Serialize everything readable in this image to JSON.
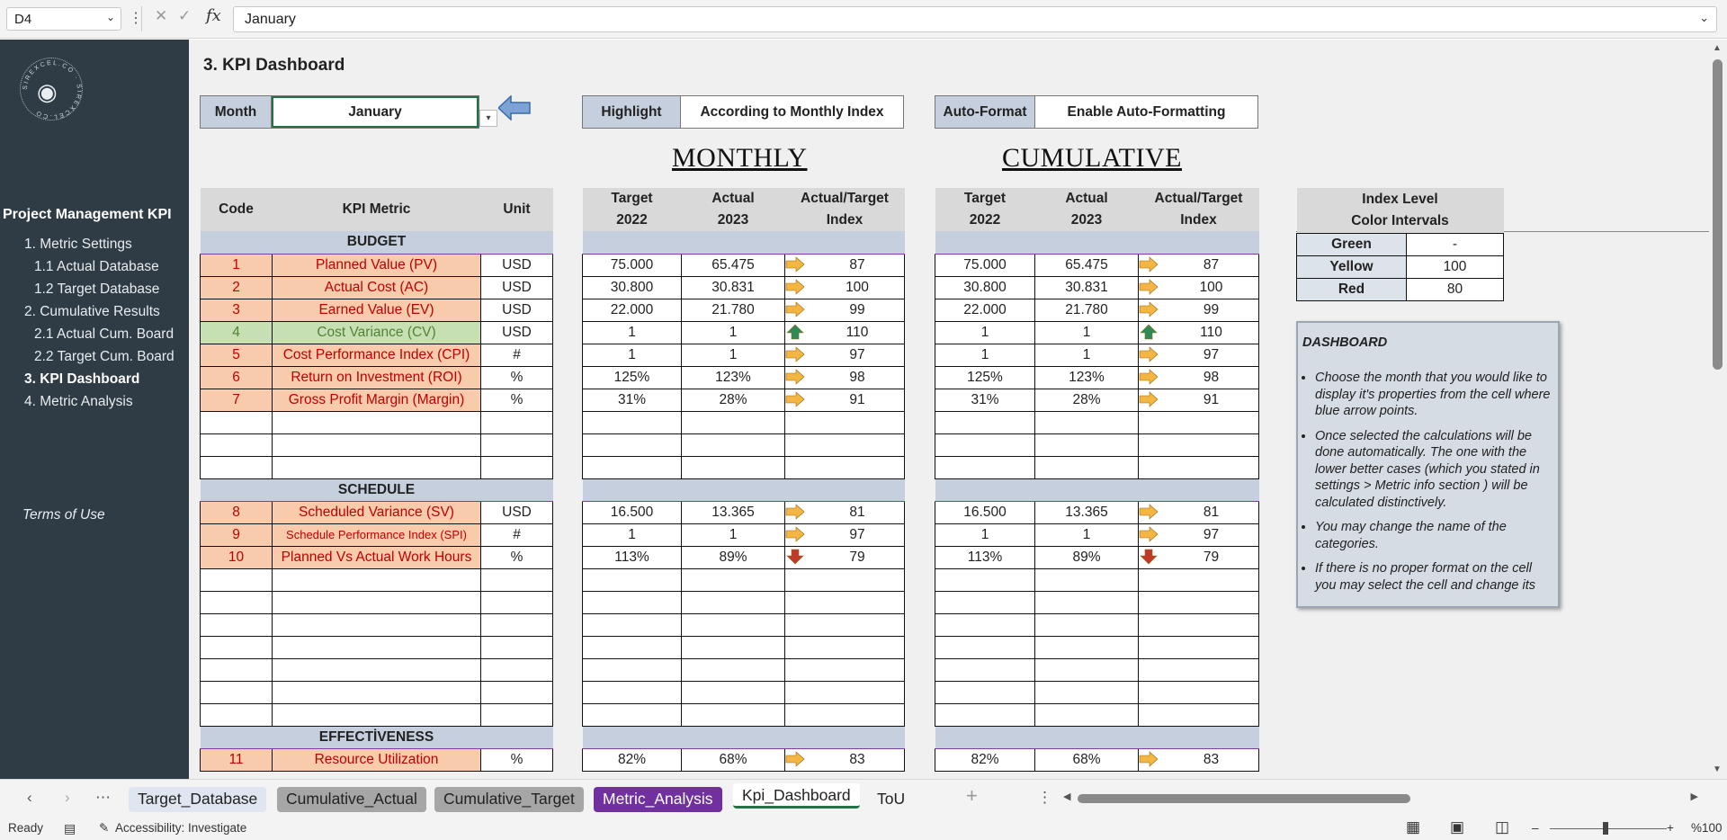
{
  "formula_bar": {
    "name_box": "D4",
    "formula": "January"
  },
  "sidebar": {
    "logo_text": "SIREXCEL.CO",
    "title": "Project Management KPI",
    "items": [
      {
        "label": "1. Metric Settings",
        "level": 1,
        "active": false
      },
      {
        "label": "1.1 Actual Database",
        "level": 2,
        "active": false
      },
      {
        "label": "1.2 Target Database",
        "level": 2,
        "active": false
      },
      {
        "label": "2. Cumulative Results",
        "level": 1,
        "active": false
      },
      {
        "label": "2.1 Actual Cum. Board",
        "level": 2,
        "active": false
      },
      {
        "label": "2.2 Target Cum. Board",
        "level": 2,
        "active": false
      },
      {
        "label": "3. KPI Dashboard",
        "level": 1,
        "active": true
      },
      {
        "label": "4. Metric Analysis",
        "level": 1,
        "active": false
      }
    ],
    "terms": "Terms of Use"
  },
  "page_title": "3. KPI Dashboard",
  "controls": {
    "month_label": "Month",
    "month_value": "January",
    "highlight_label": "Highlight",
    "highlight_value": "According to Monthly Index",
    "autoformat_label": "Auto-Format",
    "autoformat_value": "Enable Auto-Formatting"
  },
  "sections": {
    "monthly": "MONTHLY",
    "cumulative": "CUMULATIVE"
  },
  "headers": {
    "code": "Code",
    "metric": "KPI Metric",
    "unit": "Unit",
    "target": [
      "Target",
      "2022"
    ],
    "actual": [
      "Actual",
      "2023"
    ],
    "index": [
      "Actual/Target",
      "Index"
    ]
  },
  "categories": {
    "budget": "BUDGET",
    "schedule": "SCHEDULE",
    "effectiveness": "EFFECTİVENESS"
  },
  "rows": [
    {
      "type": "cat",
      "key": "budget"
    },
    {
      "type": "kpi",
      "code": "1",
      "name": "Planned Value (PV)",
      "unit": "USD",
      "target": "75.000",
      "actual": "65.475",
      "index": "87",
      "arrow": "right",
      "color": "orange"
    },
    {
      "type": "kpi",
      "code": "2",
      "name": "Actual Cost (AC)",
      "unit": "USD",
      "target": "30.800",
      "actual": "30.831",
      "index": "100",
      "arrow": "right",
      "color": "orange"
    },
    {
      "type": "kpi",
      "code": "3",
      "name": "Earned Value (EV)",
      "unit": "USD",
      "target": "22.000",
      "actual": "21.780",
      "index": "99",
      "arrow": "right",
      "color": "orange"
    },
    {
      "type": "kpi",
      "code": "4",
      "name": "Cost Variance (CV)",
      "unit": "USD",
      "target": "1",
      "actual": "1",
      "index": "110",
      "arrow": "up",
      "color": "green"
    },
    {
      "type": "kpi",
      "code": "5",
      "name": "Cost Performance Index (CPI)",
      "unit": "#",
      "target": "1",
      "actual": "1",
      "index": "97",
      "arrow": "right",
      "color": "orange"
    },
    {
      "type": "kpi",
      "code": "6",
      "name": "Return on Investment (ROI)",
      "unit": "%",
      "target": "125%",
      "actual": "123%",
      "index": "98",
      "arrow": "right",
      "color": "orange"
    },
    {
      "type": "kpi",
      "code": "7",
      "name": "Gross Profit Margin (Margin)",
      "unit": "%",
      "target": "31%",
      "actual": "28%",
      "index": "91",
      "arrow": "right",
      "color": "orange"
    },
    {
      "type": "empty"
    },
    {
      "type": "empty"
    },
    {
      "type": "empty"
    },
    {
      "type": "cat",
      "key": "schedule"
    },
    {
      "type": "kpi",
      "code": "8",
      "name": "Scheduled Variance (SV)",
      "unit": "USD",
      "target": "16.500",
      "actual": "13.365",
      "index": "81",
      "arrow": "right",
      "color": "orange"
    },
    {
      "type": "kpi",
      "code": "9",
      "name": "Schedule Performance Index (SPI)",
      "unit": "#",
      "target": "1",
      "actual": "1",
      "index": "97",
      "arrow": "right",
      "color": "orange",
      "small": true
    },
    {
      "type": "kpi",
      "code": "10",
      "name": "Planned Vs Actual Work Hours",
      "unit": "%",
      "target": "113%",
      "actual": "89%",
      "index": "79",
      "arrow": "down",
      "color": "orange"
    },
    {
      "type": "empty"
    },
    {
      "type": "empty"
    },
    {
      "type": "empty"
    },
    {
      "type": "empty"
    },
    {
      "type": "empty"
    },
    {
      "type": "empty"
    },
    {
      "type": "empty"
    },
    {
      "type": "cat",
      "key": "effectiveness"
    },
    {
      "type": "kpi",
      "code": "11",
      "name": "Resource Utilization",
      "unit": "%",
      "target": "82%",
      "actual": "68%",
      "index": "83",
      "arrow": "right",
      "color": "orange"
    }
  ],
  "legend": {
    "header": [
      "Index Level",
      "Color Intervals"
    ],
    "items": [
      {
        "label": "Green",
        "value": "-"
      },
      {
        "label": "Yellow",
        "value": "100"
      },
      {
        "label": "Red",
        "value": "80"
      }
    ]
  },
  "note": {
    "title": "DASHBOARD",
    "items": [
      "Choose the month that you would like to display it's properties from the cell where blue arrow points.",
      "Once selected the calculations will be done automatically. The one with the lower better cases (which you stated in settings > Metric info section ) will be calculated distinctively.",
      "You may change the name of the categories.",
      "If there is no proper format on the cell you may select the cell and change its"
    ]
  },
  "tabs": [
    {
      "label": "Target_Database",
      "bg": "#dfe6f1",
      "fg": "#222"
    },
    {
      "label": "Cumulative_Actual",
      "bg": "#a6a6a6",
      "fg": "#222"
    },
    {
      "label": "Cumulative_Target",
      "bg": "#a6a6a6",
      "fg": "#222"
    },
    {
      "label": "Metric_Analysis",
      "bg": "#7030a0",
      "fg": "#ffffff"
    },
    {
      "label": "Kpi_Dashboard",
      "bg": "#ffffff",
      "fg": "#222",
      "active": true
    },
    {
      "label": "ToU",
      "bg": "transparent",
      "fg": "#222"
    }
  ],
  "status": {
    "ready": "Ready",
    "accessibility": "Accessibility: Investigate",
    "zoom": "%100"
  },
  "colors": {
    "arrow_orange": "#f4b642",
    "arrow_green": "#2e8b57",
    "arrow_red": "#c0392b",
    "accent": "#217346"
  }
}
